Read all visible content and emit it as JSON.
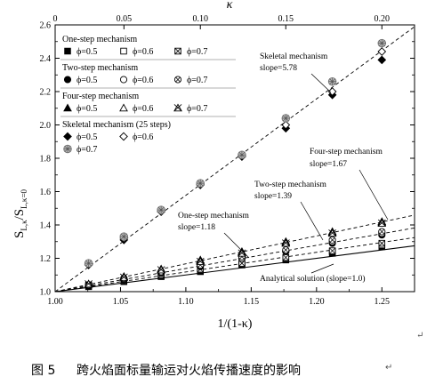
{
  "chart_data": {
    "type": "scatter",
    "xlabel": "1/(1-κ)",
    "ylabel_main": "S",
    "ylabel_sub": "L,κ",
    "ylabel_mid": "/S",
    "ylabel_sub2": "L,κ=0",
    "top_axis_label": "κ",
    "xlim": [
      1.0,
      1.275
    ],
    "ylim": [
      1.0,
      2.6
    ],
    "x_ticks": [
      "1.00",
      "1.05",
      "1.10",
      "1.15",
      "1.20",
      "1.25"
    ],
    "y_ticks": [
      "1.0",
      "1.2",
      "1.4",
      "1.6",
      "1.8",
      "2.0",
      "2.2",
      "2.4",
      "2.6"
    ],
    "top_ticks": [
      "0",
      "0.05",
      "0.10",
      "0.15",
      "0.20"
    ],
    "fit_lines": [
      {
        "name": "Analytical solution (slope=1.0)",
        "slope": 1.0,
        "style": "solid"
      },
      {
        "name": "One-step mechanism slope=1.18",
        "slope": 1.18,
        "style": "dashed"
      },
      {
        "name": "Two-step mechanism slope=1.39",
        "slope": 1.39,
        "style": "dashed"
      },
      {
        "name": "Four-step mechanism slope=1.67",
        "slope": 1.67,
        "style": "dashed"
      },
      {
        "name": "Skeletal mechanism slope=5.78",
        "slope": 5.78,
        "style": "dashed"
      }
    ],
    "series": [
      {
        "name": "One-step φ=0.5",
        "marker": "square-filled",
        "x": [
          1.0256,
          1.0526,
          1.0811,
          1.1111,
          1.1429,
          1.1765,
          1.2121,
          1.25
        ],
        "y": [
          1.03,
          1.06,
          1.09,
          1.12,
          1.16,
          1.19,
          1.23,
          1.27
        ]
      },
      {
        "name": "One-step φ=0.6",
        "marker": "square-open",
        "x": [
          1.0256,
          1.0526,
          1.0811,
          1.1111,
          1.1429,
          1.1765,
          1.2121,
          1.25
        ],
        "y": [
          1.035,
          1.065,
          1.095,
          1.13,
          1.165,
          1.2,
          1.24,
          1.28
        ]
      },
      {
        "name": "One-step φ=0.7",
        "marker": "square-x",
        "x": [
          1.0256,
          1.0526,
          1.0811,
          1.1111,
          1.1429,
          1.1765,
          1.2121,
          1.25
        ],
        "y": [
          1.04,
          1.07,
          1.1,
          1.135,
          1.17,
          1.205,
          1.245,
          1.29
        ]
      },
      {
        "name": "Two-step φ=0.5",
        "marker": "circle-filled",
        "x": [
          1.0256,
          1.0526,
          1.0811,
          1.1111,
          1.1429,
          1.1765,
          1.2121,
          1.25
        ],
        "y": [
          1.035,
          1.07,
          1.11,
          1.15,
          1.2,
          1.24,
          1.29,
          1.34
        ]
      },
      {
        "name": "Two-step φ=0.6",
        "marker": "circle-open",
        "x": [
          1.0256,
          1.0526,
          1.0811,
          1.1111,
          1.1429,
          1.1765,
          1.2121,
          1.25
        ],
        "y": [
          1.04,
          1.075,
          1.115,
          1.155,
          1.2,
          1.245,
          1.3,
          1.35
        ]
      },
      {
        "name": "Two-step φ=0.7",
        "marker": "circle-x",
        "x": [
          1.0256,
          1.0526,
          1.0811,
          1.1111,
          1.1429,
          1.1765,
          1.2121,
          1.25
        ],
        "y": [
          1.04,
          1.08,
          1.12,
          1.16,
          1.21,
          1.25,
          1.31,
          1.36
        ]
      },
      {
        "name": "Four-step φ=0.5",
        "marker": "triangle-filled",
        "x": [
          1.0256,
          1.0526,
          1.0811,
          1.1111,
          1.1429,
          1.1765,
          1.2121,
          1.25
        ],
        "y": [
          1.045,
          1.09,
          1.135,
          1.19,
          1.24,
          1.3,
          1.36,
          1.42
        ]
      },
      {
        "name": "Four-step φ=0.6",
        "marker": "triangle-open",
        "x": [
          1.0256,
          1.0526,
          1.0811,
          1.1111,
          1.1429,
          1.1765,
          1.2121,
          1.25
        ],
        "y": [
          1.045,
          1.09,
          1.135,
          1.185,
          1.235,
          1.295,
          1.355,
          1.415
        ]
      },
      {
        "name": "Four-step φ=0.7",
        "marker": "triangle-x",
        "x": [
          1.0256,
          1.0526,
          1.0811,
          1.1111,
          1.1429,
          1.1765,
          1.2121,
          1.25
        ],
        "y": [
          1.045,
          1.085,
          1.13,
          1.18,
          1.23,
          1.29,
          1.35,
          1.41
        ]
      },
      {
        "name": "Skeletal φ=0.5",
        "marker": "diamond-filled",
        "x": [
          1.0256,
          1.0526,
          1.0811,
          1.1111,
          1.1429,
          1.1765,
          1.2121,
          1.25
        ],
        "y": [
          1.16,
          1.31,
          1.48,
          1.64,
          1.81,
          1.98,
          2.18,
          2.39
        ]
      },
      {
        "name": "Skeletal φ=0.6",
        "marker": "diamond-open",
        "x": [
          1.0256,
          1.0526,
          1.0811,
          1.1111,
          1.1429,
          1.1765,
          1.2121,
          1.25
        ],
        "y": [
          1.165,
          1.32,
          1.48,
          1.645,
          1.815,
          2.0,
          2.2,
          2.44
        ]
      },
      {
        "name": "Skeletal φ=0.7",
        "marker": "pattern-circle",
        "x": [
          1.0256,
          1.0526,
          1.0811,
          1.1111,
          1.1429,
          1.1765,
          1.2121,
          1.25
        ],
        "y": [
          1.17,
          1.33,
          1.49,
          1.65,
          1.82,
          2.04,
          2.26,
          2.49
        ]
      }
    ]
  },
  "legend": {
    "groups": [
      {
        "title": "One-step mechanism",
        "entries": [
          {
            "marker": "square-filled",
            "label": "ϕ=0.5"
          },
          {
            "marker": "square-open",
            "label": "ϕ=0.6"
          },
          {
            "marker": "square-x",
            "label": "ϕ=0.7"
          }
        ]
      },
      {
        "title": "Two-step mechanism",
        "entries": [
          {
            "marker": "circle-filled",
            "label": "ϕ=0.5"
          },
          {
            "marker": "circle-open",
            "label": "ϕ=0.6"
          },
          {
            "marker": "circle-x",
            "label": "ϕ=0.7"
          }
        ]
      },
      {
        "title": "Four-step mechanism",
        "entries": [
          {
            "marker": "triangle-filled",
            "label": "ϕ=0.5"
          },
          {
            "marker": "triangle-open",
            "label": "ϕ=0.6"
          },
          {
            "marker": "triangle-x",
            "label": "ϕ=0.7"
          }
        ]
      },
      {
        "title": "Skeletal mechanism (25 steps)",
        "entries": [
          {
            "marker": "diamond-filled",
            "label": "ϕ=0.5"
          },
          {
            "marker": "diamond-open",
            "label": "ϕ=0.6"
          },
          {
            "marker": "pattern-circle",
            "label": "ϕ=0.7"
          }
        ]
      }
    ]
  },
  "annotations": {
    "skeletal": [
      "Skeletal mechanism",
      "slope=5.78"
    ],
    "four_step": [
      "Four-step mechanism",
      "slope=1.67"
    ],
    "two_step": [
      "Two-step mechanism",
      "slope=1.39"
    ],
    "one_step": [
      "One-step mechanism",
      "slope=1.18"
    ],
    "analytical": [
      "Analytical solution (slope=1.0)"
    ]
  },
  "caption": {
    "label": "图 5",
    "text": "跨火焰面标量输运对火焰传播速度的影响",
    "mark": "↵"
  },
  "side_mark": "↵"
}
